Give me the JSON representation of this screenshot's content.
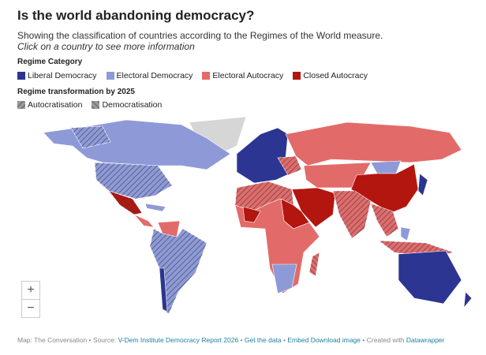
{
  "header": {
    "title": "Is the world abandoning democracy?",
    "subtitle": "Showing the classification of countries according to the Regimes of the World measure.",
    "instruction": "Click on a country to see more information"
  },
  "legend": {
    "category_title": "Regime Category",
    "categories": [
      {
        "label": "Liberal Democracy",
        "color": "#2c3592"
      },
      {
        "label": "Electoral Democracy",
        "color": "#8e9ad8"
      },
      {
        "label": "Electoral Autocracy",
        "color": "#e26b69"
      },
      {
        "label": "Closed Autocracy",
        "color": "#b3160f"
      }
    ],
    "transformation_title": "Regime transformation by 2025",
    "transformations": [
      "Autocratisation",
      "Democratisation"
    ]
  },
  "zoom": {
    "in": "+",
    "out": "−"
  },
  "footer": {
    "credit": "Map: The Conversation • Source:",
    "source": "V-Dem Institute Democracy Report 2026",
    "get_data": "Get the data",
    "embed": "Embed",
    "download": "Download image",
    "created": "• Created with",
    "tool": "Datawrapper"
  }
}
